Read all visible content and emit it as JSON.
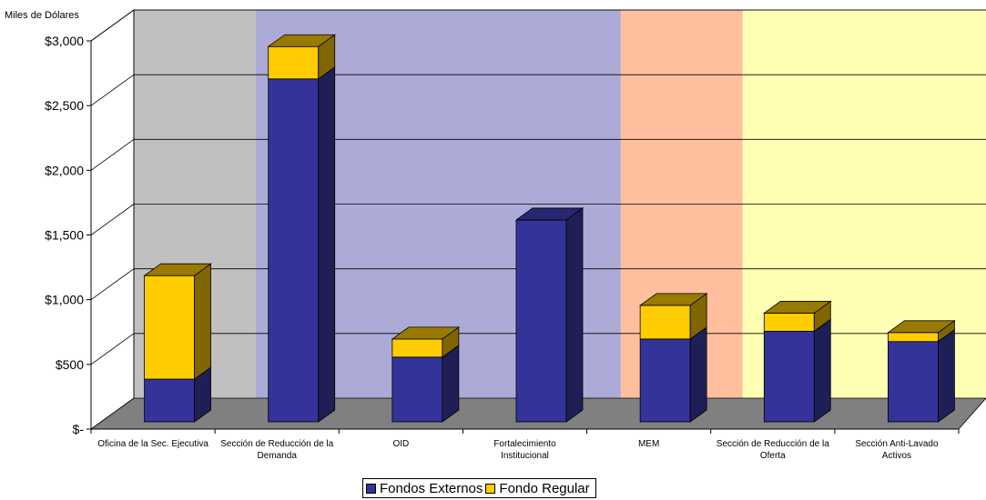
{
  "colors": {
    "fondos_externos": "#333399",
    "fondo_regular": "#FFCC00",
    "band_gray": "#C0C0C0",
    "band_lavender": "#ACABD7",
    "band_salmon": "#FFBF9F",
    "band_yellow": "#FFFFB3",
    "floor": "#808080"
  },
  "chart_data": {
    "type": "bar",
    "stacked": true,
    "three_d": true,
    "ylabel": "Miles de Dólares",
    "ylim": [
      0,
      3000
    ],
    "yticks": [
      0,
      500,
      1000,
      1500,
      2000,
      2500,
      3000
    ],
    "ytick_labels": [
      "$-",
      "$500",
      "$1,000",
      "$1,500",
      "$2,000",
      "$2,500",
      "$3,000"
    ],
    "grid": true,
    "legend_position": "bottom",
    "categories": [
      "Oficina de la Sec. Ejecutiva",
      "Sección de Reducción de la Demanda",
      "OID",
      "Fortalecimiento Institucional",
      "MEM",
      "Sección de Reducción de la Oferta",
      "Sección Anti-Lavado Activos"
    ],
    "category_lines": [
      [
        "Oficina de la Sec. Ejecutiva"
      ],
      [
        "Sección de Reducción de la",
        "Demanda"
      ],
      [
        "OID"
      ],
      [
        "Fortalecimiento",
        "Institucional"
      ],
      [
        "MEM"
      ],
      [
        "Sección de Reducción de la",
        "Oferta"
      ],
      [
        "Sección Anti-Lavado",
        "Activos"
      ]
    ],
    "series": [
      {
        "name": "Fondos Externos",
        "values": [
          330,
          2650,
          500,
          1560,
          640,
          700,
          620
        ]
      },
      {
        "name": "Fondo Regular",
        "values": [
          800,
          250,
          140,
          0,
          260,
          140,
          70
        ]
      }
    ],
    "background_bands": [
      {
        "categories": [
          0
        ],
        "color": "band_gray"
      },
      {
        "categories": [
          1,
          2,
          3
        ],
        "color": "band_lavender"
      },
      {
        "categories": [
          4
        ],
        "color": "band_salmon"
      },
      {
        "categories": [
          5,
          6
        ],
        "color": "band_yellow"
      }
    ]
  }
}
